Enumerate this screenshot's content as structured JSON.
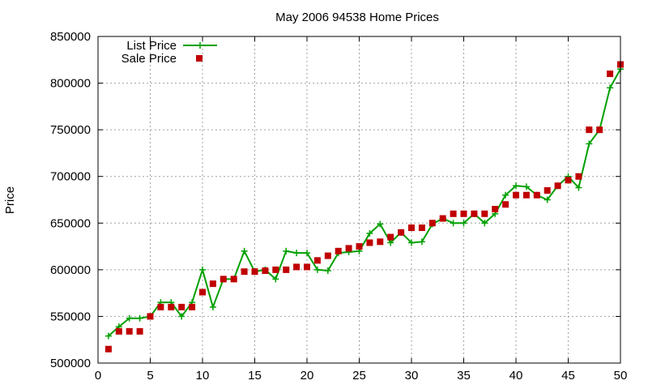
{
  "chart_data": {
    "type": "line",
    "title": "May 2006 94538 Home Prices",
    "xlabel": "",
    "ylabel": "Price",
    "xlim": [
      0,
      50
    ],
    "ylim": [
      500000,
      850000
    ],
    "xticks": [
      0,
      5,
      10,
      15,
      20,
      25,
      30,
      35,
      40,
      45,
      50
    ],
    "yticks": [
      500000,
      550000,
      600000,
      650000,
      700000,
      750000,
      800000,
      850000
    ],
    "grid": true,
    "legend": "top-left",
    "series": [
      {
        "name": "List Price",
        "style": "line-plus",
        "color": "#00a000",
        "x": [
          1,
          2,
          3,
          4,
          5,
          6,
          7,
          8,
          9,
          10,
          11,
          12,
          13,
          14,
          15,
          16,
          17,
          18,
          19,
          20,
          21,
          22,
          23,
          24,
          25,
          26,
          27,
          28,
          29,
          30,
          31,
          32,
          33,
          34,
          35,
          36,
          37,
          38,
          39,
          40,
          41,
          42,
          43,
          44,
          45,
          46,
          47,
          48,
          49,
          50
        ],
        "y": [
          529000,
          539000,
          548000,
          548000,
          550000,
          565000,
          565000,
          550000,
          565000,
          600000,
          560000,
          590000,
          590000,
          620000,
          598000,
          600000,
          590000,
          620000,
          618000,
          618000,
          600000,
          599000,
          618000,
          619000,
          620000,
          639000,
          649000,
          629000,
          640000,
          629000,
          630000,
          649000,
          655000,
          650000,
          650000,
          660000,
          650000,
          660000,
          680000,
          690000,
          689000,
          680000,
          675000,
          690000,
          700000,
          688000,
          735000,
          750000,
          795000,
          815000
        ]
      },
      {
        "name": "Sale Price",
        "style": "square-markers",
        "color": "#c00000",
        "x": [
          1,
          2,
          3,
          4,
          5,
          6,
          7,
          8,
          9,
          10,
          11,
          12,
          13,
          14,
          15,
          16,
          17,
          18,
          19,
          20,
          21,
          22,
          23,
          24,
          25,
          26,
          27,
          28,
          29,
          30,
          31,
          32,
          33,
          34,
          35,
          36,
          37,
          38,
          39,
          40,
          41,
          42,
          43,
          44,
          45,
          46,
          47,
          48,
          49,
          50
        ],
        "y": [
          515000,
          534000,
          534000,
          534000,
          550000,
          560000,
          560000,
          560000,
          560000,
          576000,
          585000,
          590000,
          590000,
          598000,
          598000,
          599000,
          600000,
          600000,
          603000,
          603000,
          610000,
          615000,
          620000,
          623000,
          625000,
          629000,
          630000,
          635000,
          640000,
          645000,
          645000,
          650000,
          655000,
          660000,
          660000,
          660000,
          660000,
          665000,
          670000,
          680000,
          680000,
          680000,
          685000,
          690000,
          696000,
          700000,
          750000,
          750000,
          810000,
          820000
        ]
      }
    ]
  }
}
